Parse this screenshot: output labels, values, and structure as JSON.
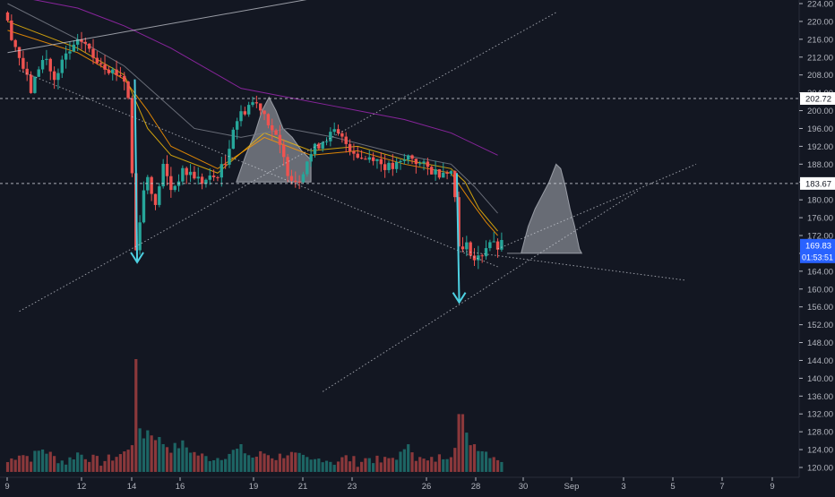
{
  "colors": {
    "background": "#131722",
    "up": "#26a69a",
    "down": "#ef5350",
    "ma_purple": "#9c27b0",
    "ma_yellow": "#f0b90b",
    "ma_orange": "#ff9800",
    "ma_gray": "#787b86",
    "arrow_cyan": "#4dd0e1",
    "price_tag": "#2962ff",
    "axis_text": "#b2b5be"
  },
  "chart_data": {
    "type": "candlestick",
    "title": "",
    "xlabel": "",
    "ylabel": "",
    "ylim": [
      118,
      225
    ],
    "x_ticks": [
      "9",
      "12",
      "14",
      "16",
      "19",
      "21",
      "23",
      "26",
      "28",
      "30",
      "Sep",
      "3",
      "5",
      "7",
      "9"
    ],
    "y_ticks": [
      120.0,
      124.0,
      128.0,
      132.0,
      136.0,
      140.0,
      144.0,
      148.0,
      152.0,
      156.0,
      160.0,
      164.0,
      168.0,
      172.0,
      176.0,
      180.0,
      184.0,
      188.0,
      192.0,
      196.0,
      200.0,
      204.0,
      208.0,
      212.0,
      216.0,
      220.0,
      224.0
    ],
    "grid": false,
    "horizontal_levels": [
      {
        "label": "202.72",
        "value": 202.72
      },
      {
        "label": "183.67",
        "value": 183.67
      }
    ],
    "current_price": {
      "label": "169.83",
      "value": 169.83,
      "countdown": "01:53:51"
    },
    "price_path": [
      [
        9.0,
        222
      ],
      [
        9.4,
        216
      ],
      [
        9.8,
        210
      ],
      [
        10.2,
        204
      ],
      [
        10.5,
        210
      ],
      [
        10.8,
        212
      ],
      [
        11.2,
        206
      ],
      [
        11.6,
        212
      ],
      [
        12.0,
        214
      ],
      [
        12.4,
        216
      ],
      [
        12.8,
        212
      ],
      [
        13.2,
        211
      ],
      [
        13.6,
        209
      ],
      [
        14.0,
        208
      ],
      [
        14.3,
        206
      ],
      [
        14.5,
        186
      ],
      [
        14.6,
        170
      ],
      [
        14.7,
        168
      ],
      [
        14.9,
        180
      ],
      [
        15.2,
        186
      ],
      [
        15.5,
        178
      ],
      [
        15.8,
        188
      ],
      [
        16.2,
        182
      ],
      [
        16.6,
        186
      ],
      [
        17.0,
        186
      ],
      [
        17.5,
        184
      ],
      [
        18.0,
        185
      ],
      [
        18.5,
        188
      ],
      [
        18.8,
        196
      ],
      [
        19.0,
        198
      ],
      [
        19.3,
        200
      ],
      [
        19.6,
        202
      ],
      [
        20.0,
        201
      ],
      [
        20.4,
        197
      ],
      [
        20.8,
        192
      ],
      [
        21.2,
        186
      ],
      [
        21.6,
        184
      ],
      [
        22.0,
        189
      ],
      [
        22.4,
        192
      ],
      [
        22.8,
        194
      ],
      [
        23.2,
        195
      ],
      [
        23.6,
        193
      ],
      [
        24.0,
        191
      ],
      [
        24.4,
        189
      ],
      [
        24.8,
        190
      ],
      [
        25.2,
        188
      ],
      [
        25.6,
        187
      ],
      [
        26.0,
        188
      ],
      [
        26.4,
        190
      ],
      [
        26.8,
        188
      ],
      [
        27.2,
        187
      ],
      [
        27.6,
        186
      ],
      [
        28.0,
        187
      ],
      [
        28.2,
        186
      ],
      [
        28.35,
        180
      ],
      [
        28.45,
        172
      ],
      [
        28.6,
        168
      ],
      [
        28.9,
        170
      ],
      [
        29.2,
        166
      ],
      [
        29.5,
        168
      ],
      [
        29.8,
        171
      ],
      [
        30.1,
        169
      ],
      [
        30.3,
        169.83
      ]
    ],
    "volume_path": [
      [
        9.0,
        121
      ],
      [
        9.5,
        123
      ],
      [
        10.0,
        122
      ],
      [
        10.5,
        124
      ],
      [
        11.0,
        122
      ],
      [
        11.5,
        121
      ],
      [
        12.0,
        123
      ],
      [
        12.5,
        122
      ],
      [
        13.0,
        121
      ],
      [
        13.5,
        122
      ],
      [
        14.0,
        123
      ],
      [
        14.4,
        126
      ],
      [
        14.5,
        143
      ],
      [
        14.6,
        134
      ],
      [
        14.7,
        126
      ],
      [
        15.0,
        128
      ],
      [
        15.5,
        126
      ],
      [
        16.0,
        124
      ],
      [
        16.5,
        125
      ],
      [
        17.0,
        123
      ],
      [
        17.5,
        122
      ],
      [
        18.0,
        122
      ],
      [
        18.5,
        123
      ],
      [
        19.0,
        124
      ],
      [
        19.5,
        122
      ],
      [
        20.0,
        123
      ],
      [
        20.5,
        122
      ],
      [
        21.0,
        123
      ],
      [
        21.5,
        122
      ],
      [
        22.0,
        121
      ],
      [
        22.5,
        122
      ],
      [
        23.0,
        121
      ],
      [
        23.5,
        122
      ],
      [
        24.0,
        121
      ],
      [
        24.5,
        122
      ],
      [
        25.0,
        121
      ],
      [
        25.5,
        122
      ],
      [
        26.0,
        123
      ],
      [
        26.2,
        126
      ],
      [
        26.5,
        122
      ],
      [
        27.0,
        121
      ],
      [
        27.5,
        122
      ],
      [
        28.0,
        123
      ],
      [
        28.3,
        127
      ],
      [
        28.4,
        141
      ],
      [
        28.5,
        131
      ],
      [
        28.7,
        126
      ],
      [
        29.0,
        125
      ],
      [
        29.3,
        124
      ],
      [
        29.6,
        123
      ],
      [
        30.0,
        122
      ],
      [
        30.3,
        121
      ]
    ],
    "moving_averages": [
      {
        "color": "#9c27b0",
        "points": [
          [
            9,
            226
          ],
          [
            12,
            223
          ],
          [
            14,
            219
          ],
          [
            16,
            214
          ],
          [
            19,
            205
          ],
          [
            21,
            203
          ],
          [
            23,
            201
          ],
          [
            26,
            198
          ],
          [
            28,
            195
          ],
          [
            30,
            190
          ]
        ]
      },
      {
        "color": "#f0b90b",
        "points": [
          [
            9,
            220
          ],
          [
            12,
            214
          ],
          [
            14,
            208
          ],
          [
            15,
            196
          ],
          [
            16,
            190
          ],
          [
            18,
            186
          ],
          [
            20,
            195
          ],
          [
            22,
            191
          ],
          [
            24,
            192
          ],
          [
            26,
            189
          ],
          [
            28,
            187
          ],
          [
            28.6,
            184
          ],
          [
            29.2,
            178
          ],
          [
            30,
            173
          ]
        ]
      },
      {
        "color": "#ff9800",
        "points": [
          [
            9,
            218
          ],
          [
            12,
            213
          ],
          [
            14,
            207
          ],
          [
            15,
            200
          ],
          [
            16,
            192
          ],
          [
            18,
            187
          ],
          [
            20,
            194
          ],
          [
            22,
            190
          ],
          [
            24,
            191
          ],
          [
            26,
            188
          ],
          [
            28,
            186
          ],
          [
            28.8,
            180
          ],
          [
            29.5,
            175
          ],
          [
            30,
            172
          ]
        ]
      },
      {
        "color": "#787b86",
        "points": [
          [
            9,
            224
          ],
          [
            12,
            216
          ],
          [
            14,
            210
          ],
          [
            15.5,
            203
          ],
          [
            17,
            196
          ],
          [
            19,
            194
          ],
          [
            21,
            196
          ],
          [
            23,
            194
          ],
          [
            26,
            190
          ],
          [
            28,
            188
          ],
          [
            29,
            183
          ],
          [
            30,
            177
          ]
        ]
      }
    ],
    "projection_shapes": [
      {
        "fill": true,
        "points": [
          [
            30.4,
            168
          ],
          [
            31.0,
            168
          ],
          [
            31.3,
            174
          ],
          [
            31.6,
            178
          ],
          [
            31.9,
            181
          ],
          [
            32.2,
            184
          ],
          [
            32.5,
            188
          ],
          [
            32.7,
            187
          ],
          [
            32.9,
            183
          ],
          [
            33.1,
            178
          ],
          [
            33.3,
            174
          ],
          [
            33.5,
            169
          ],
          [
            33.6,
            168
          ]
        ]
      },
      {
        "fill": true,
        "points": [
          [
            18.8,
            184
          ],
          [
            19.2,
            190
          ],
          [
            19.6,
            195
          ],
          [
            19.9,
            200
          ],
          [
            20.2,
            203
          ],
          [
            20.5,
            200
          ],
          [
            20.8,
            196
          ],
          [
            21.2,
            194
          ],
          [
            21.6,
            191
          ],
          [
            22.0,
            189
          ],
          [
            22.0,
            184
          ]
        ]
      }
    ],
    "trend_lines": [
      {
        "points": [
          [
            9.0,
            213
          ],
          [
            23.0,
            226
          ]
        ],
        "dashed": false
      },
      {
        "points": [
          [
            9.5,
            209
          ],
          [
            30.0,
            165
          ]
        ],
        "dashed": true
      },
      {
        "points": [
          [
            28.5,
            168.5
          ],
          [
            38.0,
            162
          ]
        ],
        "dashed": true
      },
      {
        "points": [
          [
            9.5,
            155
          ],
          [
            32.5,
            222
          ]
        ],
        "dashed": true
      },
      {
        "points": [
          [
            22.5,
            137
          ],
          [
            36.0,
            182
          ]
        ],
        "dashed": true
      },
      {
        "points": [
          [
            30.0,
            169
          ],
          [
            38.5,
            188
          ]
        ],
        "dashed": true
      }
    ],
    "drop_arrows": [
      {
        "from": [
          14.45,
          207
        ],
        "to": [
          14.55,
          166
        ]
      },
      {
        "from": [
          28.25,
          186
        ],
        "to": [
          28.35,
          157
        ]
      }
    ]
  }
}
